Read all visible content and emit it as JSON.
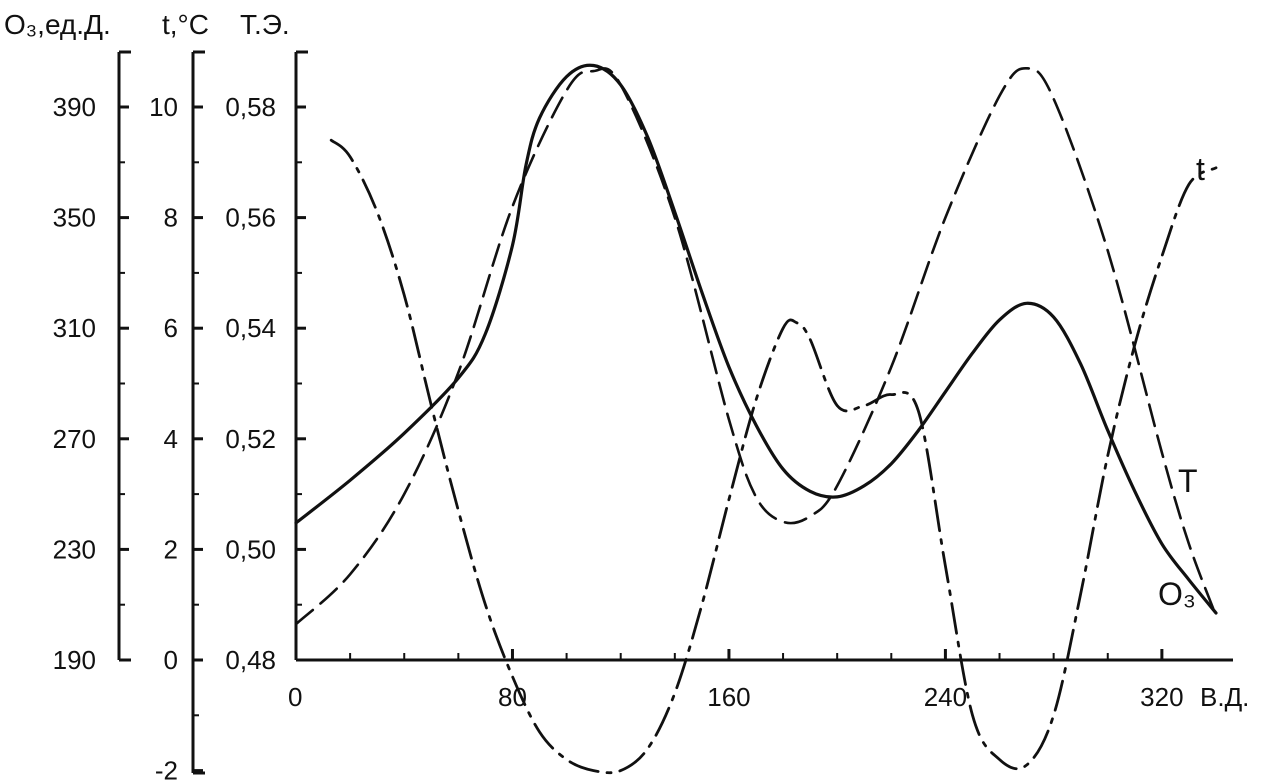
{
  "chart_data": {
    "type": "line",
    "title": "",
    "xlabel": "В.Д.",
    "x_ticks": [
      "0",
      "80",
      "160",
      "240",
      "320"
    ],
    "xlim": [
      0,
      340
    ],
    "y_axes": [
      {
        "title": "O₃,ед.Д.",
        "ticks": [
          "190",
          "230",
          "270",
          "310",
          "350",
          "390"
        ],
        "ylim": [
          190,
          410
        ]
      },
      {
        "title": "t,°C",
        "ticks": [
          "-2",
          "0",
          "2",
          "4",
          "6",
          "8",
          "10"
        ],
        "ylim": [
          -2,
          11
        ]
      },
      {
        "title": "Т.Э.",
        "ticks": [
          "0,48",
          "0,50",
          "0,52",
          "0,54",
          "0,56",
          "0,58"
        ],
        "ylim": [
          0.48,
          0.59
        ]
      }
    ],
    "series": [
      {
        "name": "T",
        "axis": "Т.Э.",
        "style": "solid",
        "x": [
          0,
          20,
          40,
          60,
          70,
          80,
          85,
          90,
          100,
          110,
          120,
          130,
          140,
          150,
          160,
          170,
          180,
          190,
          200,
          210,
          220,
          230,
          240,
          250,
          260,
          270,
          280,
          290,
          300,
          310,
          320,
          330,
          340
        ],
        "y": [
          0.5048,
          0.5125,
          0.521,
          0.531,
          0.539,
          0.555,
          0.5695,
          0.578,
          0.5855,
          0.5875,
          0.584,
          0.5745,
          0.561,
          0.5465,
          0.533,
          0.5225,
          0.5145,
          0.5105,
          0.5095,
          0.5115,
          0.5155,
          0.5215,
          0.5285,
          0.5355,
          0.5415,
          0.5445,
          0.542,
          0.5335,
          0.5215,
          0.5105,
          0.501,
          0.4945,
          0.4885
        ]
      },
      {
        "name": "O₃",
        "axis": "O₃,ед.Д.",
        "style": "dashed",
        "x": [
          0,
          20,
          40,
          60,
          80,
          100,
          110,
          120,
          140,
          160,
          170,
          180,
          190,
          200,
          220,
          240,
          260,
          270,
          280,
          300,
          320,
          330,
          340
        ],
        "y": [
          203,
          221,
          250,
          294,
          354,
          396,
          403,
          398,
          350,
          277,
          249,
          240,
          242,
          253,
          296,
          350,
          394,
          404,
          393,
          338,
          265,
          232,
          206
        ]
      },
      {
        "name": "t",
        "axis": "t,°C",
        "style": "dash-dot",
        "x": [
          13,
          20,
          30,
          40,
          50,
          60,
          70,
          80,
          90,
          100,
          110,
          120,
          130,
          140,
          150,
          160,
          170,
          180,
          185,
          190,
          200,
          210,
          220,
          230,
          240,
          250,
          260,
          270,
          280,
          290,
          300,
          310,
          320,
          330,
          340
        ],
        "y": [
          9.4,
          9.1,
          8.1,
          6.6,
          4.6,
          2.7,
          1.0,
          -0.3,
          -1.3,
          -1.8,
          -2.0,
          -2.0,
          -1.6,
          -0.6,
          1.0,
          2.9,
          4.7,
          6.0,
          6.1,
          5.8,
          4.6,
          4.6,
          4.8,
          4.5,
          1.7,
          -1.0,
          -1.8,
          -1.9,
          -1.0,
          1.2,
          3.7,
          5.7,
          7.3,
          8.6,
          8.9
        ]
      }
    ]
  }
}
